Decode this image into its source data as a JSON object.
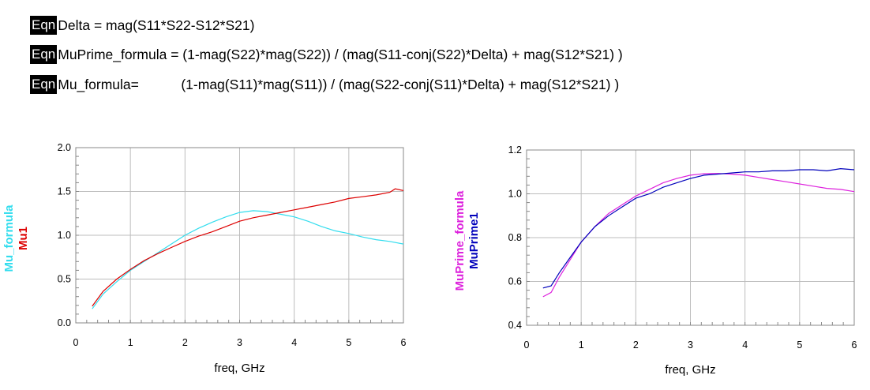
{
  "equations": [
    {
      "badge": "Eqn",
      "text": "Delta = mag(S11*S22-S12*S21)"
    },
    {
      "badge": "Eqn",
      "text": "MuPrime_formula = (1-mag(S22)*mag(S22)) / (mag(S11-conj(S22)*Delta) + mag(S12*S21) )"
    },
    {
      "badge": "Eqn",
      "text": "Mu_formula=           (1-mag(S11)*mag(S11)) / (mag(S22-conj(S11)*Delta) + mag(S12*S21) )"
    }
  ],
  "chart_data": [
    {
      "type": "line",
      "xlabel": "freq, GHz",
      "xlim": [
        0,
        6
      ],
      "ylim": [
        0,
        2
      ],
      "xticks": [
        "0",
        "1",
        "2",
        "3",
        "4",
        "5",
        "6"
      ],
      "yticks": [
        "0.0",
        "0.5",
        "1.0",
        "1.5",
        "2.0"
      ],
      "grid": true,
      "ylabels": [
        {
          "text": "Mu_formula",
          "color": "#33DDEE"
        },
        {
          "text": "Mu1",
          "color": "#DD0000"
        }
      ],
      "series": [
        {
          "name": "Mu_formula",
          "color": "#33DDEE",
          "x": [
            0.3,
            0.5,
            0.75,
            1.0,
            1.25,
            1.5,
            1.75,
            2.0,
            2.25,
            2.5,
            2.75,
            3.0,
            3.25,
            3.5,
            3.75,
            4.0,
            4.25,
            4.5,
            4.75,
            5.0,
            5.25,
            5.5,
            5.75,
            6.0
          ],
          "y": [
            0.16,
            0.33,
            0.47,
            0.6,
            0.7,
            0.8,
            0.9,
            1.0,
            1.08,
            1.15,
            1.21,
            1.26,
            1.28,
            1.27,
            1.24,
            1.21,
            1.16,
            1.1,
            1.05,
            1.02,
            0.98,
            0.95,
            0.93,
            0.9
          ]
        },
        {
          "name": "Mu1",
          "color": "#DD0000",
          "x": [
            0.3,
            0.5,
            0.75,
            1.0,
            1.25,
            1.5,
            1.75,
            2.0,
            2.25,
            2.5,
            2.75,
            3.0,
            3.25,
            3.5,
            3.75,
            4.0,
            4.25,
            4.5,
            4.75,
            5.0,
            5.25,
            5.5,
            5.75,
            5.85,
            6.0
          ],
          "y": [
            0.19,
            0.36,
            0.5,
            0.61,
            0.71,
            0.79,
            0.86,
            0.93,
            0.99,
            1.04,
            1.1,
            1.16,
            1.2,
            1.23,
            1.26,
            1.29,
            1.32,
            1.35,
            1.38,
            1.42,
            1.44,
            1.46,
            1.49,
            1.53,
            1.51
          ]
        }
      ]
    },
    {
      "type": "line",
      "xlabel": "freq, GHz",
      "xlim": [
        0,
        6
      ],
      "ylim": [
        0.4,
        1.2
      ],
      "xticks": [
        "0",
        "1",
        "2",
        "3",
        "4",
        "5",
        "6"
      ],
      "yticks": [
        "0.4",
        "0.6",
        "0.8",
        "1.0",
        "1.2"
      ],
      "grid": true,
      "ylabels": [
        {
          "text": "MuPrime_formula",
          "color": "#DD22DD"
        },
        {
          "text": "MuPrime1",
          "color": "#0000BB"
        }
      ],
      "series": [
        {
          "name": "MuPrime_formula",
          "color": "#DD22DD",
          "x": [
            0.3,
            0.45,
            0.6,
            0.8,
            1.0,
            1.25,
            1.5,
            1.75,
            2.0,
            2.25,
            2.5,
            2.75,
            3.0,
            3.25,
            3.5,
            3.75,
            4.0,
            4.25,
            4.5,
            4.75,
            5.0,
            5.25,
            5.5,
            5.75,
            6.0
          ],
          "y": [
            0.53,
            0.55,
            0.62,
            0.7,
            0.78,
            0.85,
            0.91,
            0.95,
            0.99,
            1.02,
            1.05,
            1.07,
            1.085,
            1.092,
            1.093,
            1.09,
            1.085,
            1.075,
            1.065,
            1.055,
            1.045,
            1.035,
            1.025,
            1.02,
            1.01
          ]
        },
        {
          "name": "MuPrime1",
          "color": "#0000BB",
          "x": [
            0.3,
            0.45,
            0.6,
            0.8,
            1.0,
            1.25,
            1.5,
            1.75,
            2.0,
            2.25,
            2.5,
            2.75,
            3.0,
            3.25,
            3.5,
            3.75,
            4.0,
            4.25,
            4.5,
            4.75,
            5.0,
            5.25,
            5.5,
            5.75,
            6.0
          ],
          "y": [
            0.57,
            0.58,
            0.64,
            0.71,
            0.78,
            0.85,
            0.9,
            0.94,
            0.98,
            1.0,
            1.03,
            1.05,
            1.07,
            1.085,
            1.09,
            1.095,
            1.1,
            1.1,
            1.105,
            1.105,
            1.11,
            1.11,
            1.105,
            1.115,
            1.11
          ]
        }
      ]
    }
  ]
}
